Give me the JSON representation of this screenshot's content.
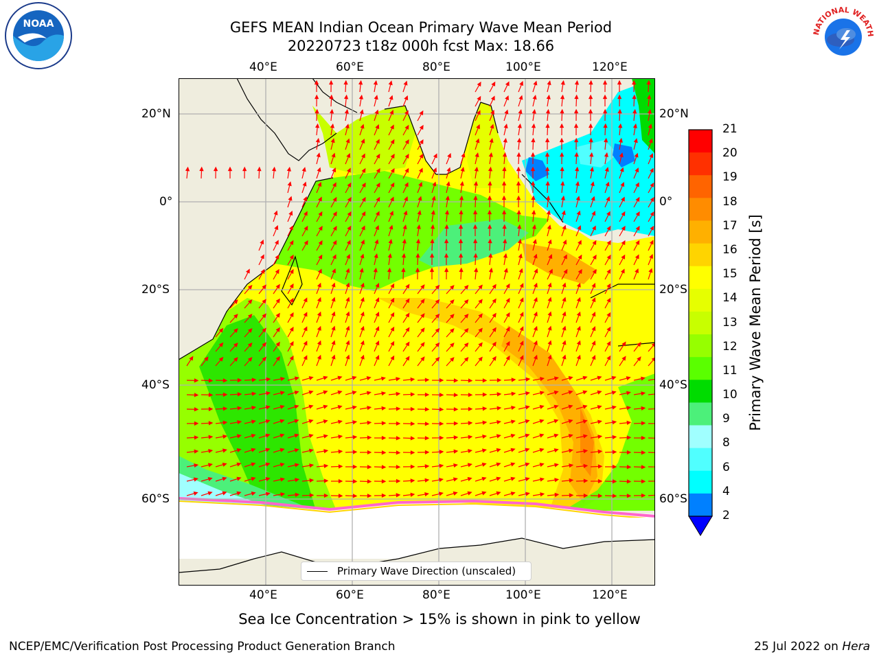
{
  "title": {
    "line1": "GEFS MEAN Indian Ocean Primary Wave Mean Period",
    "line2": "20220723 t18z 000h fcst   Max: 18.66"
  },
  "map": {
    "lon_ticks": [
      "40°E",
      "60°E",
      "80°E",
      "100°E",
      "120°E"
    ],
    "lat_ticks_left": [
      "20°N",
      "0°",
      "20°S",
      "40°S",
      "60°S"
    ],
    "lat_ticks_right": [
      "20°N",
      "0°",
      "20°S",
      "40°S",
      "60°S"
    ],
    "land_color": "#efedde",
    "arrow_color": "#ff0000",
    "legend_label": "Primary Wave Direction (unscaled)"
  },
  "colorbar": {
    "title": "Primary Wave Mean Period [s]",
    "labels": [
      "21",
      "20",
      "19",
      "18",
      "17",
      "16",
      "15",
      "14",
      "13",
      "12",
      "11",
      "10",
      "9",
      "8",
      "6",
      "4",
      "2"
    ],
    "colors": [
      "#ff0000",
      "#ff3000",
      "#ff6400",
      "#ff8c00",
      "#ffb000",
      "#ffd400",
      "#ffff00",
      "#e6ff00",
      "#c8ff00",
      "#96ff00",
      "#5aff00",
      "#00dc00",
      "#4cf07a",
      "#a0ffff",
      "#50ffff",
      "#00ffff",
      "#0080ff"
    ],
    "under_color": "#0000ff"
  },
  "footer": {
    "sea_ice_note": "Sea Ice Concentration > 15% is shown in pink to yellow",
    "left": "NCEP/EMC/Verification Post Processing Product Generation Branch",
    "right_date": "25 Jul 2022 on ",
    "right_host": "Hera"
  },
  "logos": {
    "noaa_text": "NOAA",
    "nws_text": "NATIONAL WEATHER SERVICE"
  }
}
